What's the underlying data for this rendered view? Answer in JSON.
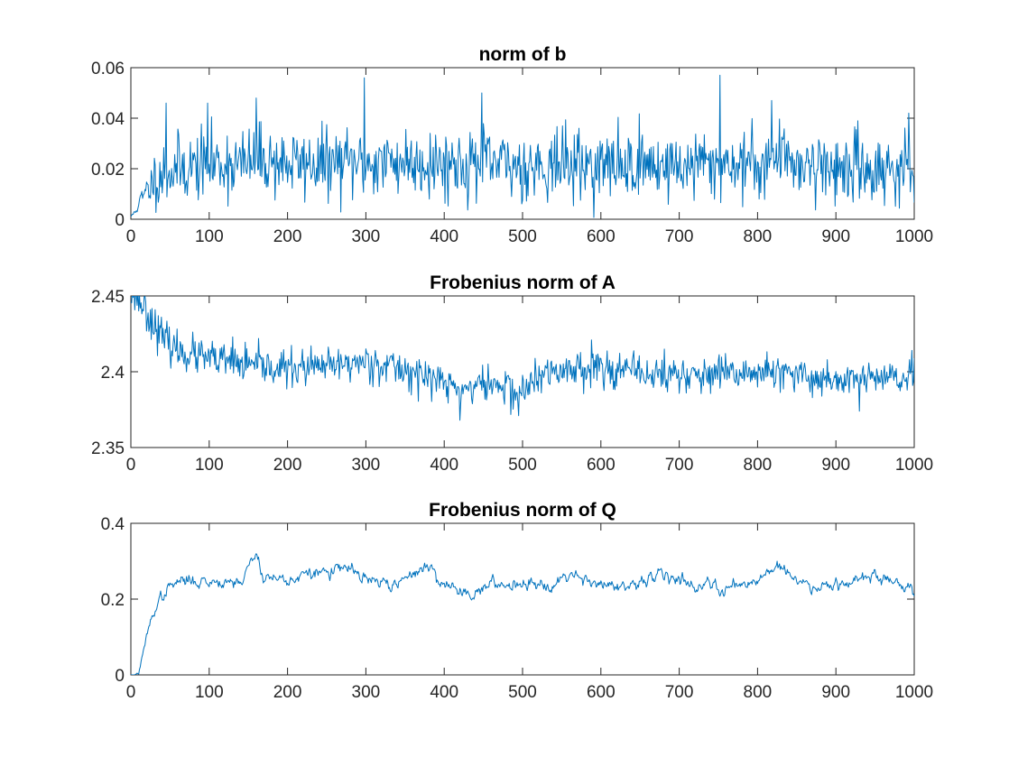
{
  "chart_data": [
    {
      "type": "line",
      "title": "norm of b",
      "xlabel": "",
      "ylabel": "",
      "xlim": [
        0,
        1000
      ],
      "ylim": [
        0,
        0.06
      ],
      "xticks": [
        0,
        100,
        200,
        300,
        400,
        500,
        600,
        700,
        800,
        900,
        1000
      ],
      "xtick_labels": [
        "0",
        "100",
        "200",
        "300",
        "400",
        "500",
        "600",
        "700",
        "800",
        "900",
        "1000"
      ],
      "yticks": [
        0,
        0.02,
        0.04,
        0.06
      ],
      "ytick_labels": [
        "0",
        "0.02",
        "0.04",
        "0.06"
      ],
      "grid": false,
      "color": "#0072BD",
      "series": [
        {
          "x": [
            0,
            5,
            10,
            20,
            30,
            40,
            50,
            60,
            80,
            100,
            120,
            150,
            160,
            200,
            250,
            300,
            350,
            400,
            450,
            500,
            550,
            600,
            650,
            700,
            750,
            800,
            830,
            850,
            900,
            950,
            1000
          ],
          "values": [
            0.001,
            0.003,
            0.006,
            0.011,
            0.016,
            0.018,
            0.019,
            0.02,
            0.021,
            0.022,
            0.022,
            0.022,
            0.024,
            0.022,
            0.022,
            0.022,
            0.023,
            0.022,
            0.022,
            0.021,
            0.022,
            0.021,
            0.022,
            0.021,
            0.022,
            0.022,
            0.025,
            0.023,
            0.02,
            0.02,
            0.02
          ],
          "spikes": [
            [
              45,
              0.046
            ],
            [
              98,
              0.046
            ],
            [
              160,
              0.048
            ],
            [
              298,
              0.056
            ],
            [
              448,
              0.05
            ],
            [
              752,
              0.057
            ],
            [
              818,
              0.047
            ],
            [
              993,
              0.042
            ]
          ]
        }
      ]
    },
    {
      "type": "line",
      "title": "Frobenius norm of A",
      "xlabel": "",
      "ylabel": "",
      "xlim": [
        0,
        1000
      ],
      "ylim": [
        2.35,
        2.45
      ],
      "xticks": [
        0,
        100,
        200,
        300,
        400,
        500,
        600,
        700,
        800,
        900,
        1000
      ],
      "xtick_labels": [
        "0",
        "100",
        "200",
        "300",
        "400",
        "500",
        "600",
        "700",
        "800",
        "900",
        "1000"
      ],
      "yticks": [
        2.35,
        2.4,
        2.45
      ],
      "ytick_labels": [
        "2.35",
        "2.4",
        "2.45"
      ],
      "grid": false,
      "color": "#0072BD",
      "series": [
        {
          "x": [
            0,
            5,
            10,
            20,
            30,
            40,
            50,
            60,
            80,
            100,
            130,
            150,
            200,
            250,
            300,
            320,
            350,
            400,
            420,
            450,
            480,
            495,
            520,
            550,
            590,
            650,
            700,
            750,
            800,
            850,
            900,
            950,
            1000
          ],
          "values": [
            2.452,
            2.451,
            2.448,
            2.44,
            2.43,
            2.422,
            2.418,
            2.414,
            2.411,
            2.408,
            2.406,
            2.404,
            2.402,
            2.403,
            2.407,
            2.405,
            2.401,
            2.393,
            2.388,
            2.392,
            2.39,
            2.385,
            2.396,
            2.401,
            2.404,
            2.399,
            2.398,
            2.397,
            2.4,
            2.397,
            2.395,
            2.396,
            2.395
          ],
          "spikes": [
            [
              35,
              2.437
            ],
            [
              130,
              2.423
            ],
            [
              420,
              2.368
            ],
            [
              495,
              2.371
            ],
            [
              588,
              2.421
            ],
            [
              930,
              2.374
            ]
          ]
        }
      ]
    },
    {
      "type": "line",
      "title": "Frobenius norm of Q",
      "xlabel": "",
      "ylabel": "",
      "xlim": [
        0,
        1000
      ],
      "ylim": [
        0,
        0.4
      ],
      "xticks": [
        0,
        100,
        200,
        300,
        400,
        500,
        600,
        700,
        800,
        900,
        1000
      ],
      "xtick_labels": [
        "0",
        "100",
        "200",
        "300",
        "400",
        "500",
        "600",
        "700",
        "800",
        "900",
        "1000"
      ],
      "yticks": [
        0,
        0.2,
        0.4
      ],
      "ytick_labels": [
        "0",
        "0.2",
        "0.4"
      ],
      "grid": false,
      "color": "#0072BD",
      "series": [
        {
          "x": [
            0,
            5,
            10,
            15,
            20,
            25,
            30,
            40,
            50,
            60,
            80,
            100,
            120,
            140,
            160,
            170,
            200,
            240,
            280,
            300,
            340,
            375,
            400,
            430,
            460,
            500,
            540,
            560,
            600,
            640,
            680,
            700,
            720,
            760,
            800,
            825,
            850,
            880,
            900,
            950,
            1000
          ],
          "values": [
            0.0,
            0.0,
            0.005,
            0.05,
            0.1,
            0.14,
            0.17,
            0.21,
            0.23,
            0.245,
            0.25,
            0.245,
            0.25,
            0.245,
            0.32,
            0.26,
            0.25,
            0.27,
            0.28,
            0.25,
            0.235,
            0.29,
            0.24,
            0.215,
            0.235,
            0.245,
            0.24,
            0.27,
            0.24,
            0.225,
            0.275,
            0.25,
            0.24,
            0.23,
            0.25,
            0.295,
            0.245,
            0.235,
            0.245,
            0.26,
            0.225
          ],
          "spikes": [
            [
              160,
              0.32
            ],
            [
              375,
              0.295
            ],
            [
              825,
              0.3
            ]
          ]
        }
      ]
    }
  ]
}
